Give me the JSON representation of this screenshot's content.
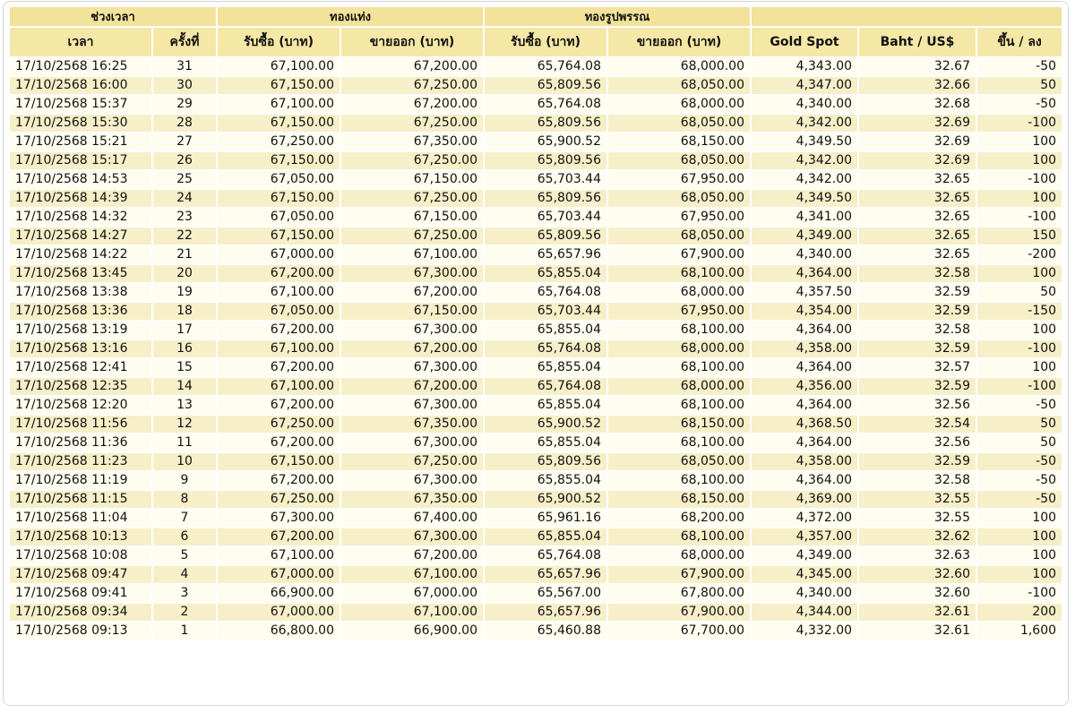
{
  "table": {
    "group_headers": [
      "ช่วงเวลา",
      "ทองแท่ง",
      "ทองรูปพรรณ"
    ],
    "headers": [
      "เวลา",
      "ครั้งที่",
      "รับซื้อ (บาท)",
      "ขายออก (บาท)",
      "รับซื้อ (บาท)",
      "ขายออก (บาท)",
      "Gold Spot",
      "Baht / US$",
      "ขึ้น / ลง"
    ],
    "rows": [
      [
        "17/10/2568 16:25",
        "31",
        "67,100.00",
        "67,200.00",
        "65,764.08",
        "68,000.00",
        "4,343.00",
        "32.67",
        "-50"
      ],
      [
        "17/10/2568 16:00",
        "30",
        "67,150.00",
        "67,250.00",
        "65,809.56",
        "68,050.00",
        "4,347.00",
        "32.66",
        "50"
      ],
      [
        "17/10/2568 15:37",
        "29",
        "67,100.00",
        "67,200.00",
        "65,764.08",
        "68,000.00",
        "4,340.00",
        "32.68",
        "-50"
      ],
      [
        "17/10/2568 15:30",
        "28",
        "67,150.00",
        "67,250.00",
        "65,809.56",
        "68,050.00",
        "4,342.00",
        "32.69",
        "-100"
      ],
      [
        "17/10/2568 15:21",
        "27",
        "67,250.00",
        "67,350.00",
        "65,900.52",
        "68,150.00",
        "4,349.50",
        "32.69",
        "100"
      ],
      [
        "17/10/2568 15:17",
        "26",
        "67,150.00",
        "67,250.00",
        "65,809.56",
        "68,050.00",
        "4,342.00",
        "32.69",
        "100"
      ],
      [
        "17/10/2568 14:53",
        "25",
        "67,050.00",
        "67,150.00",
        "65,703.44",
        "67,950.00",
        "4,342.00",
        "32.65",
        "-100"
      ],
      [
        "17/10/2568 14:39",
        "24",
        "67,150.00",
        "67,250.00",
        "65,809.56",
        "68,050.00",
        "4,349.50",
        "32.65",
        "100"
      ],
      [
        "17/10/2568 14:32",
        "23",
        "67,050.00",
        "67,150.00",
        "65,703.44",
        "67,950.00",
        "4,341.00",
        "32.65",
        "-100"
      ],
      [
        "17/10/2568 14:27",
        "22",
        "67,150.00",
        "67,250.00",
        "65,809.56",
        "68,050.00",
        "4,349.00",
        "32.65",
        "150"
      ],
      [
        "17/10/2568 14:22",
        "21",
        "67,000.00",
        "67,100.00",
        "65,657.96",
        "67,900.00",
        "4,340.00",
        "32.65",
        "-200"
      ],
      [
        "17/10/2568 13:45",
        "20",
        "67,200.00",
        "67,300.00",
        "65,855.04",
        "68,100.00",
        "4,364.00",
        "32.58",
        "100"
      ],
      [
        "17/10/2568 13:38",
        "19",
        "67,100.00",
        "67,200.00",
        "65,764.08",
        "68,000.00",
        "4,357.50",
        "32.59",
        "50"
      ],
      [
        "17/10/2568 13:36",
        "18",
        "67,050.00",
        "67,150.00",
        "65,703.44",
        "67,950.00",
        "4,354.00",
        "32.59",
        "-150"
      ],
      [
        "17/10/2568 13:19",
        "17",
        "67,200.00",
        "67,300.00",
        "65,855.04",
        "68,100.00",
        "4,364.00",
        "32.58",
        "100"
      ],
      [
        "17/10/2568 13:16",
        "16",
        "67,100.00",
        "67,200.00",
        "65,764.08",
        "68,000.00",
        "4,358.00",
        "32.59",
        "-100"
      ],
      [
        "17/10/2568 12:41",
        "15",
        "67,200.00",
        "67,300.00",
        "65,855.04",
        "68,100.00",
        "4,364.00",
        "32.57",
        "100"
      ],
      [
        "17/10/2568 12:35",
        "14",
        "67,100.00",
        "67,200.00",
        "65,764.08",
        "68,000.00",
        "4,356.00",
        "32.59",
        "-100"
      ],
      [
        "17/10/2568 12:20",
        "13",
        "67,200.00",
        "67,300.00",
        "65,855.04",
        "68,100.00",
        "4,364.00",
        "32.56",
        "-50"
      ],
      [
        "17/10/2568 11:56",
        "12",
        "67,250.00",
        "67,350.00",
        "65,900.52",
        "68,150.00",
        "4,368.50",
        "32.54",
        "50"
      ],
      [
        "17/10/2568 11:36",
        "11",
        "67,200.00",
        "67,300.00",
        "65,855.04",
        "68,100.00",
        "4,364.00",
        "32.56",
        "50"
      ],
      [
        "17/10/2568 11:23",
        "10",
        "67,150.00",
        "67,250.00",
        "65,809.56",
        "68,050.00",
        "4,358.00",
        "32.59",
        "-50"
      ],
      [
        "17/10/2568 11:19",
        "9",
        "67,200.00",
        "67,300.00",
        "65,855.04",
        "68,100.00",
        "4,364.00",
        "32.58",
        "-50"
      ],
      [
        "17/10/2568 11:15",
        "8",
        "67,250.00",
        "67,350.00",
        "65,900.52",
        "68,150.00",
        "4,369.00",
        "32.55",
        "-50"
      ],
      [
        "17/10/2568 11:04",
        "7",
        "67,300.00",
        "67,400.00",
        "65,961.16",
        "68,200.00",
        "4,372.00",
        "32.55",
        "100"
      ],
      [
        "17/10/2568 10:13",
        "6",
        "67,200.00",
        "67,300.00",
        "65,855.04",
        "68,100.00",
        "4,357.00",
        "32.62",
        "100"
      ],
      [
        "17/10/2568 10:08",
        "5",
        "67,100.00",
        "67,200.00",
        "65,764.08",
        "68,000.00",
        "4,349.00",
        "32.63",
        "100"
      ],
      [
        "17/10/2568 09:47",
        "4",
        "67,000.00",
        "67,100.00",
        "65,657.96",
        "67,900.00",
        "4,345.00",
        "32.60",
        "100"
      ],
      [
        "17/10/2568 09:41",
        "3",
        "66,900.00",
        "67,000.00",
        "65,567.00",
        "67,800.00",
        "4,340.00",
        "32.60",
        "-100"
      ],
      [
        "17/10/2568 09:34",
        "2",
        "67,000.00",
        "67,100.00",
        "65,657.96",
        "67,900.00",
        "4,344.00",
        "32.61",
        "200"
      ],
      [
        "17/10/2568 09:13",
        "1",
        "66,800.00",
        "66,900.00",
        "65,460.88",
        "67,700.00",
        "4,332.00",
        "32.61",
        "1,600"
      ]
    ]
  }
}
